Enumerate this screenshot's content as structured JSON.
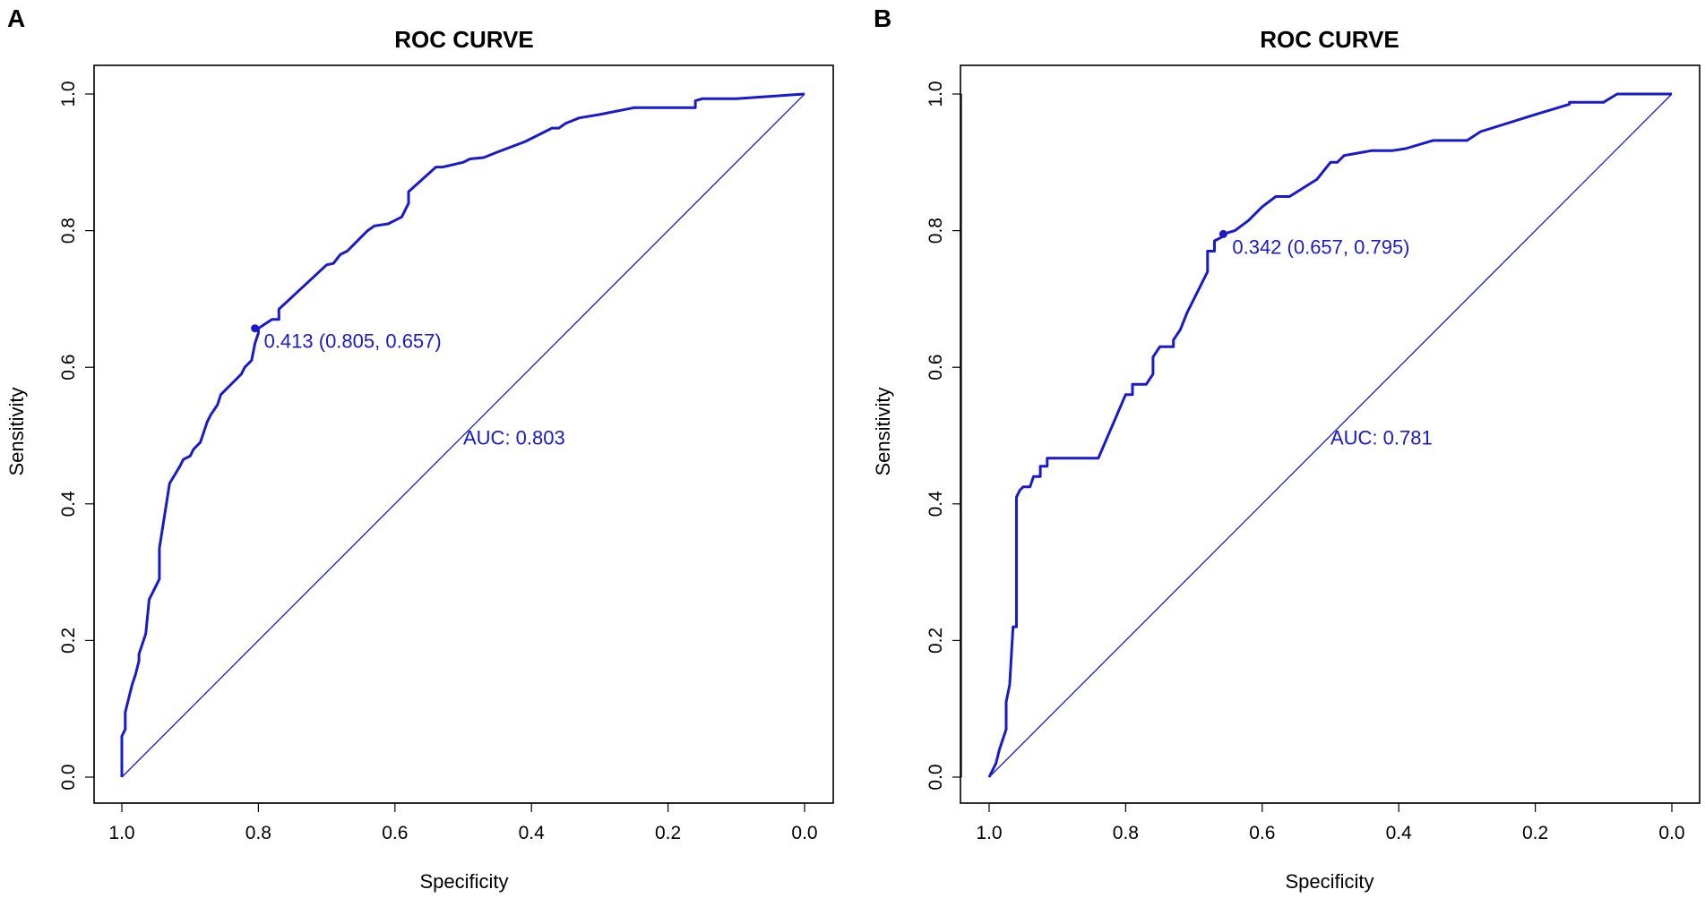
{
  "figure": {
    "description": "Two ROC curve panels side by side"
  },
  "chart_data": [
    {
      "type": "line",
      "panel_label": "A",
      "title": "ROC CURVE",
      "xlabel": "Specificity",
      "ylabel": "Sensitivity",
      "xlim": [
        1.0,
        0.0
      ],
      "ylim": [
        0.0,
        1.0
      ],
      "x_ticks": [
        "1.0",
        "0.8",
        "0.6",
        "0.4",
        "0.2",
        "0.0"
      ],
      "y_ticks": [
        "0.0",
        "0.2",
        "0.4",
        "0.6",
        "0.8",
        "1.0"
      ],
      "series": [
        {
          "name": "ROC",
          "color": "#1a1acc",
          "specificity": [
            1.0,
            1.0,
            0.995,
            0.995,
            0.985,
            0.98,
            0.975,
            0.975,
            0.965,
            0.96,
            0.95,
            0.945,
            0.945,
            0.93,
            0.915,
            0.91,
            0.9,
            0.895,
            0.885,
            0.875,
            0.87,
            0.86,
            0.855,
            0.845,
            0.835,
            0.825,
            0.82,
            0.81,
            0.805,
            0.8,
            0.8,
            0.78,
            0.77,
            0.77,
            0.7,
            0.69,
            0.68,
            0.67,
            0.64,
            0.63,
            0.61,
            0.6,
            0.59,
            0.58,
            0.58,
            0.56,
            0.54,
            0.53,
            0.5,
            0.49,
            0.47,
            0.45,
            0.41,
            0.4,
            0.37,
            0.36,
            0.35,
            0.33,
            0.33,
            0.3,
            0.25,
            0.23,
            0.16,
            0.16,
            0.15,
            0.1,
            0.0
          ],
          "sensitivity": [
            0.0,
            0.06,
            0.07,
            0.095,
            0.135,
            0.15,
            0.17,
            0.18,
            0.21,
            0.26,
            0.28,
            0.29,
            0.335,
            0.43,
            0.455,
            0.465,
            0.47,
            0.48,
            0.49,
            0.52,
            0.53,
            0.545,
            0.56,
            0.57,
            0.58,
            0.59,
            0.6,
            0.61,
            0.635,
            0.65,
            0.657,
            0.67,
            0.67,
            0.685,
            0.75,
            0.752,
            0.765,
            0.77,
            0.8,
            0.807,
            0.81,
            0.815,
            0.82,
            0.84,
            0.857,
            0.875,
            0.893,
            0.893,
            0.9,
            0.905,
            0.907,
            0.915,
            0.93,
            0.935,
            0.95,
            0.95,
            0.957,
            0.965,
            0.965,
            0.97,
            0.98,
            0.98,
            0.98,
            0.99,
            0.993,
            0.993,
            1.0
          ]
        },
        {
          "name": "chance",
          "color": "#1a1acc",
          "specificity": [
            1.0,
            0.0
          ],
          "sensitivity": [
            0.0,
            1.0
          ]
        }
      ],
      "threshold_point": {
        "specificity": 0.805,
        "sensitivity": 0.657,
        "label": "0.413 (0.805, 0.657)"
      },
      "auc_label": "AUC: 0.803",
      "auc_position": {
        "specificity": 0.5,
        "sensitivity": 0.487
      }
    },
    {
      "type": "line",
      "panel_label": "B",
      "title": "ROC CURVE",
      "xlabel": "Specificity",
      "ylabel": "Sensitivity",
      "xlim": [
        1.0,
        0.0
      ],
      "ylim": [
        0.0,
        1.0
      ],
      "x_ticks": [
        "1.0",
        "0.8",
        "0.6",
        "0.4",
        "0.2",
        "0.0"
      ],
      "y_ticks": [
        "0.0",
        "0.2",
        "0.4",
        "0.6",
        "0.8",
        "1.0"
      ],
      "series": [
        {
          "name": "ROC",
          "color": "#1a1acc",
          "specificity": [
            1.0,
            0.99,
            0.985,
            0.975,
            0.975,
            0.97,
            0.965,
            0.96,
            0.96,
            0.955,
            0.95,
            0.94,
            0.935,
            0.925,
            0.925,
            0.915,
            0.915,
            0.84,
            0.8,
            0.79,
            0.79,
            0.77,
            0.76,
            0.76,
            0.75,
            0.73,
            0.73,
            0.72,
            0.71,
            0.68,
            0.68,
            0.67,
            0.67,
            0.66,
            0.657,
            0.64,
            0.62,
            0.6,
            0.58,
            0.56,
            0.52,
            0.5,
            0.49,
            0.48,
            0.44,
            0.41,
            0.39,
            0.35,
            0.3,
            0.28,
            0.2,
            0.15,
            0.15,
            0.1,
            0.08,
            0.0
          ],
          "sensitivity": [
            0.0,
            0.02,
            0.04,
            0.07,
            0.11,
            0.135,
            0.22,
            0.22,
            0.41,
            0.42,
            0.425,
            0.425,
            0.44,
            0.44,
            0.455,
            0.455,
            0.467,
            0.467,
            0.56,
            0.56,
            0.575,
            0.575,
            0.59,
            0.615,
            0.63,
            0.63,
            0.64,
            0.655,
            0.68,
            0.74,
            0.77,
            0.77,
            0.785,
            0.79,
            0.795,
            0.8,
            0.815,
            0.835,
            0.85,
            0.85,
            0.875,
            0.9,
            0.9,
            0.91,
            0.917,
            0.917,
            0.92,
            0.932,
            0.932,
            0.945,
            0.97,
            0.985,
            0.988,
            0.988,
            1.0,
            1.0
          ]
        },
        {
          "name": "chance",
          "color": "#1a1acc",
          "specificity": [
            1.0,
            0.0
          ],
          "sensitivity": [
            0.0,
            1.0
          ]
        }
      ],
      "threshold_point": {
        "specificity": 0.657,
        "sensitivity": 0.795,
        "label": "0.342 (0.657, 0.795)"
      },
      "auc_label": "AUC: 0.781",
      "auc_position": {
        "specificity": 0.5,
        "sensitivity": 0.487
      }
    }
  ]
}
